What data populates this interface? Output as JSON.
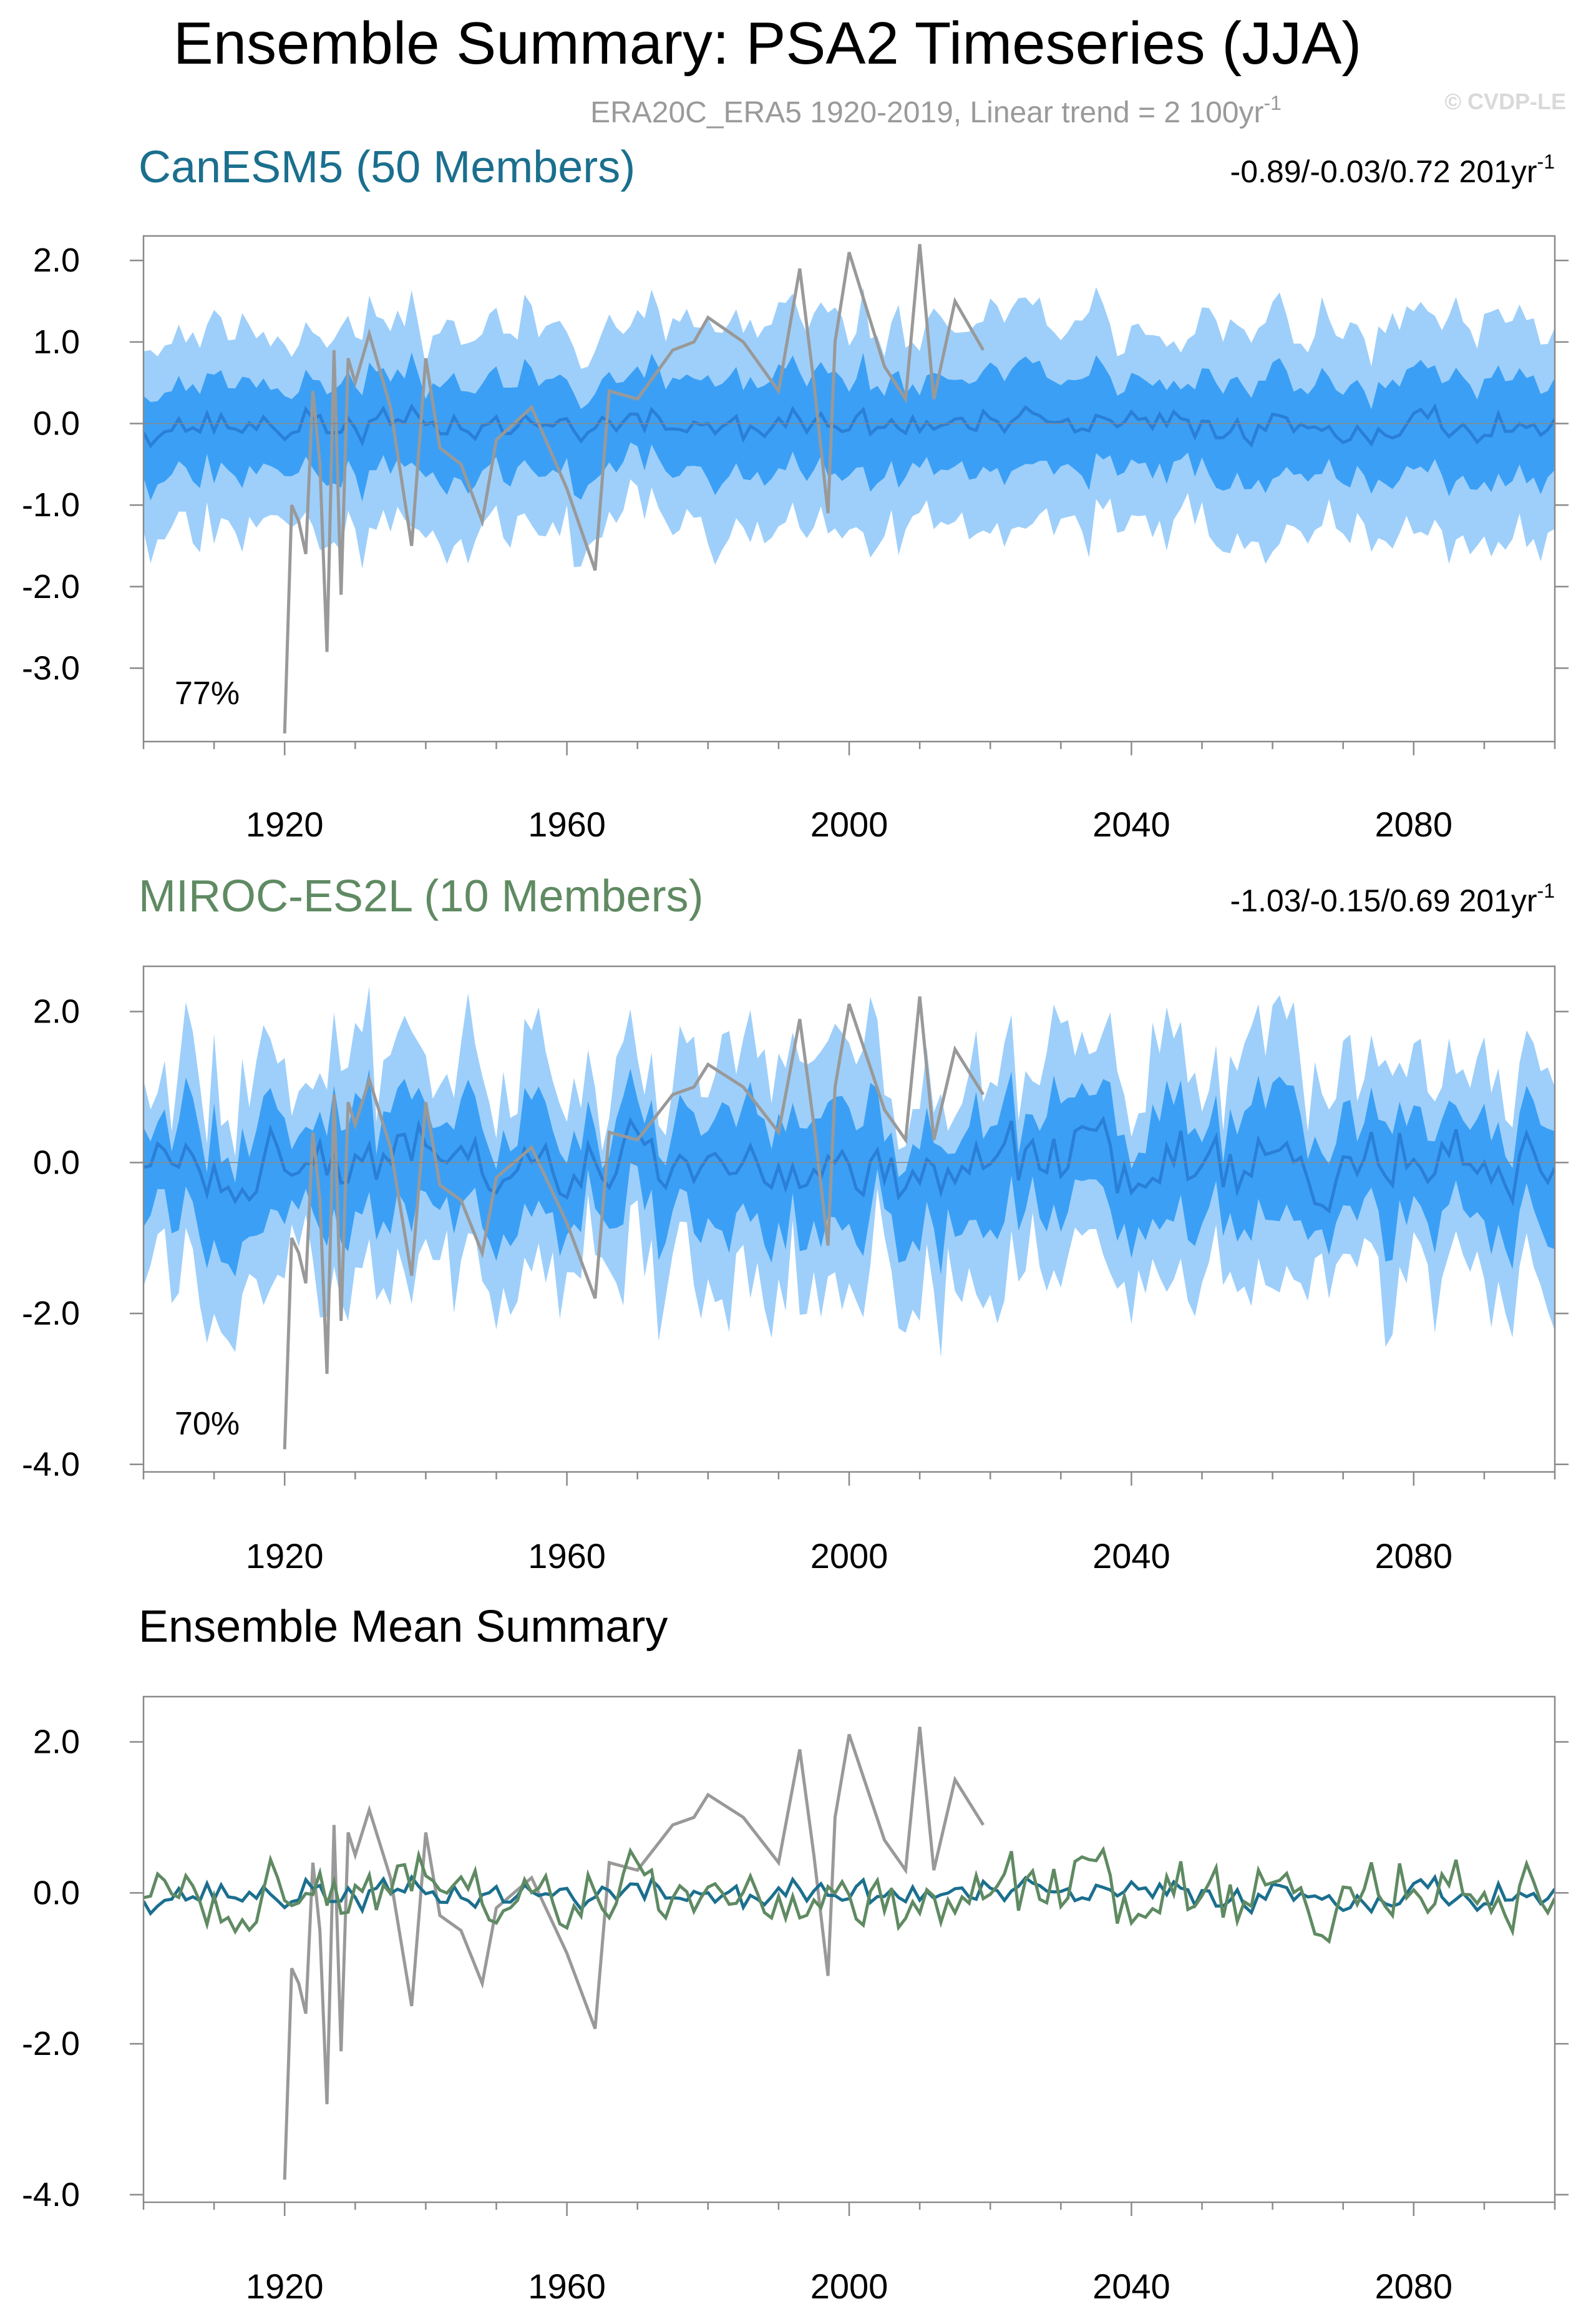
{
  "title": "Ensemble Summary: PSA2 Timeseries (JJA)",
  "subtitle": "ERA20C_ERA5 1920-2019, Linear trend = 2 100yr",
  "subtitle_sup": "-1",
  "watermark": "© CVDP-LE",
  "colors": {
    "band_outer": "#9ECFFA",
    "band_inner": "#3BA0F5",
    "ens_mean": "#2A7FD6",
    "obs": "#999999",
    "canesm5": "#1B6F8E",
    "miroc": "#5F8A62",
    "axis": "#8a8a8a"
  },
  "chart_data": [
    {
      "id": "canesm5",
      "type": "area",
      "panel_title": "CanESM5 (50 Members)",
      "title_color": "#1B6F8E",
      "trend_text": "-0.89/-0.03/0.72 201yr",
      "trend_sup": "-1",
      "percent_label": "77%",
      "xlim": [
        1900,
        2100
      ],
      "ylim": [
        -3.9,
        2.3
      ],
      "xticks": [
        1920,
        1960,
        2000,
        2040,
        2080
      ],
      "yticks": [
        2.0,
        1.0,
        0.0,
        -1.0,
        -2.0,
        -3.0
      ],
      "ytick_labels": [
        "2.0",
        "1.0",
        "0.0",
        "-1.0",
        "-2.0",
        "-3.0"
      ],
      "series": [
        {
          "name": "ensemble 10-90% range",
          "x_start": 1900,
          "x_end": 2100,
          "p10_mean": -1.3,
          "p90_mean": 1.2
        },
        {
          "name": "ensemble 25-75% range",
          "x_start": 1900,
          "x_end": 2100,
          "p25_mean": -0.6,
          "p75_mean": 0.55
        },
        {
          "name": "ensemble mean",
          "x_start": 1900,
          "x_end": 2100,
          "mean": -0.02,
          "amplitude": 0.15
        },
        {
          "name": "ERA20C_ERA5",
          "x": [
            1920,
            1921,
            1922,
            1923,
            1924,
            1925,
            1926,
            1927,
            1928,
            1929,
            1930,
            1932,
            1935,
            1938,
            1940,
            1942,
            1945,
            1948,
            1950,
            1955,
            1960,
            1964,
            1966,
            1970,
            1975,
            1978,
            1980,
            1985,
            1990,
            1993,
            1995,
            1997,
            1998,
            2000,
            2005,
            2008,
            2010,
            2012,
            2015,
            2019
          ],
          "values": [
            -3.8,
            -1.0,
            -1.2,
            -1.6,
            0.4,
            -0.5,
            -2.8,
            0.9,
            -2.1,
            0.8,
            0.5,
            1.1,
            0.2,
            -1.5,
            0.8,
            -0.3,
            -0.5,
            -1.2,
            -0.2,
            0.2,
            -0.8,
            -1.8,
            0.4,
            0.3,
            0.9,
            1.0,
            1.3,
            1.0,
            0.4,
            1.9,
            0.5,
            -1.1,
            1.0,
            2.1,
            0.7,
            0.3,
            2.2,
            0.3,
            1.5,
            0.9
          ]
        }
      ]
    },
    {
      "id": "miroc",
      "type": "area",
      "panel_title": "MIROC-ES2L (10 Members)",
      "title_color": "#5F8A62",
      "trend_text": "-1.03/-0.15/0.69 201yr",
      "trend_sup": "-1",
      "percent_label": "70%",
      "xlim": [
        1900,
        2100
      ],
      "ylim": [
        -4.1,
        2.6
      ],
      "xticks": [
        1920,
        1960,
        2000,
        2040,
        2080
      ],
      "yticks": [
        2.0,
        0.0,
        -2.0,
        -4.0
      ],
      "ytick_labels": [
        "2.0",
        "0.0",
        "-2.0",
        "-4.0"
      ],
      "series": [
        {
          "name": "ensemble 10-90% range",
          "x_start": 1900,
          "x_end": 2100,
          "p10_mean": -1.5,
          "p90_mean": 1.3
        },
        {
          "name": "ensemble 25-75% range",
          "x_start": 1900,
          "x_end": 2100,
          "p25_mean": -0.75,
          "p75_mean": 0.6
        },
        {
          "name": "ensemble mean",
          "x_start": 1900,
          "x_end": 2100,
          "mean": -0.05,
          "amplitude": 0.35
        },
        {
          "name": "ERA20C_ERA5",
          "x": [
            1920,
            1921,
            1922,
            1923,
            1924,
            1925,
            1926,
            1927,
            1928,
            1929,
            1930,
            1932,
            1935,
            1938,
            1940,
            1942,
            1945,
            1948,
            1950,
            1955,
            1960,
            1964,
            1966,
            1970,
            1975,
            1978,
            1980,
            1985,
            1990,
            1993,
            1995,
            1997,
            1998,
            2000,
            2005,
            2008,
            2010,
            2012,
            2015,
            2019
          ],
          "values": [
            -3.8,
            -1.0,
            -1.2,
            -1.6,
            0.4,
            -0.5,
            -2.8,
            0.9,
            -2.1,
            0.8,
            0.5,
            1.1,
            0.2,
            -1.5,
            0.8,
            -0.3,
            -0.5,
            -1.2,
            -0.2,
            0.2,
            -0.8,
            -1.8,
            0.4,
            0.3,
            0.9,
            1.0,
            1.3,
            1.0,
            0.4,
            1.9,
            0.5,
            -1.1,
            1.0,
            2.1,
            0.7,
            0.3,
            2.2,
            0.3,
            1.5,
            0.9
          ]
        }
      ]
    },
    {
      "id": "mean_summary",
      "type": "line",
      "panel_title": "Ensemble Mean Summary",
      "title_color": "#000000",
      "xlim": [
        1900,
        2100
      ],
      "ylim": [
        -4.1,
        2.6
      ],
      "xticks": [
        1920,
        1960,
        2000,
        2040,
        2080
      ],
      "yticks": [
        2.0,
        0.0,
        -2.0,
        -4.0
      ],
      "ytick_labels": [
        "2.0",
        "0.0",
        "-2.0",
        "-4.0"
      ],
      "series": [
        {
          "name": "ERA20C_ERA5",
          "color": "#999999",
          "x": [
            1920,
            1921,
            1922,
            1923,
            1924,
            1925,
            1926,
            1927,
            1928,
            1929,
            1930,
            1932,
            1935,
            1938,
            1940,
            1942,
            1945,
            1948,
            1950,
            1955,
            1960,
            1964,
            1966,
            1970,
            1975,
            1978,
            1980,
            1985,
            1990,
            1993,
            1995,
            1997,
            1998,
            2000,
            2005,
            2008,
            2010,
            2012,
            2015,
            2019
          ],
          "values": [
            -3.8,
            -1.0,
            -1.2,
            -1.6,
            0.4,
            -0.5,
            -2.8,
            0.9,
            -2.1,
            0.8,
            0.5,
            1.1,
            0.2,
            -1.5,
            0.8,
            -0.3,
            -0.5,
            -1.2,
            -0.2,
            0.2,
            -0.8,
            -1.8,
            0.4,
            0.3,
            0.9,
            1.0,
            1.3,
            1.0,
            0.4,
            1.9,
            0.5,
            -1.1,
            1.0,
            2.1,
            0.7,
            0.3,
            2.2,
            0.3,
            1.5,
            0.9
          ]
        },
        {
          "name": "CanESM5 ensemble mean",
          "color": "#1B6F8E",
          "x_start": 1900,
          "x_end": 2100,
          "mean": -0.02,
          "amplitude": 0.15
        },
        {
          "name": "MIROC-ES2L ensemble mean",
          "color": "#5F8A62",
          "x_start": 1900,
          "x_end": 2100,
          "mean": -0.05,
          "amplitude": 0.35
        }
      ]
    }
  ]
}
